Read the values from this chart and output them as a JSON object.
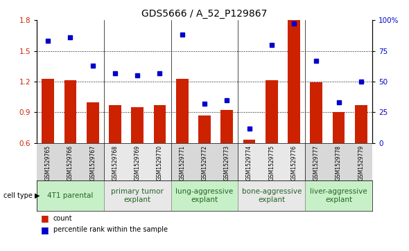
{
  "title": "GDS5666 / A_52_P129867",
  "samples": [
    "GSM1529765",
    "GSM1529766",
    "GSM1529767",
    "GSM1529768",
    "GSM1529769",
    "GSM1529770",
    "GSM1529771",
    "GSM1529772",
    "GSM1529773",
    "GSM1529774",
    "GSM1529775",
    "GSM1529776",
    "GSM1529777",
    "GSM1529778",
    "GSM1529779"
  ],
  "counts": [
    1.23,
    1.21,
    1.0,
    0.97,
    0.95,
    0.97,
    1.23,
    0.87,
    0.92,
    0.63,
    1.21,
    1.8,
    1.19,
    0.9,
    0.97
  ],
  "percentiles": [
    83,
    86,
    63,
    57,
    55,
    57,
    88,
    32,
    35,
    12,
    80,
    97,
    67,
    33,
    50
  ],
  "bar_color": "#cc2200",
  "dot_color": "#0000cc",
  "ylim_left": [
    0.6,
    1.8
  ],
  "ylim_right": [
    0,
    100
  ],
  "yticks_left": [
    0.6,
    0.9,
    1.2,
    1.5,
    1.8
  ],
  "yticks_right": [
    0,
    25,
    50,
    75,
    100
  ],
  "group_labels": [
    "4T1 parental",
    "primary tumor\nexplant",
    "lung-aggressive\nexplant",
    "bone-aggressive\nexplant",
    "liver-aggressive\nexplant"
  ],
  "group_colors": [
    "#c8f0c8",
    "#e8e8e8",
    "#c8f0c8",
    "#e8e8e8",
    "#c8f0c8"
  ],
  "group_starts": [
    0,
    3,
    6,
    9,
    12
  ],
  "group_ends": [
    2,
    5,
    8,
    11,
    14
  ],
  "cell_type_label": "cell type",
  "legend_count_label": "count",
  "legend_pct_label": "percentile rank within the sample",
  "tick_label_color_left": "#cc2200",
  "tick_label_color_right": "#0000cc",
  "title_fontsize": 10,
  "axis_fontsize": 7.5,
  "sample_label_fontsize": 5.5,
  "group_label_fontsize": 7.5,
  "tick_band_color": "#cccccc",
  "group_band_alt1": "#c8f0c8",
  "group_band_alt2": "#f0f0f0"
}
